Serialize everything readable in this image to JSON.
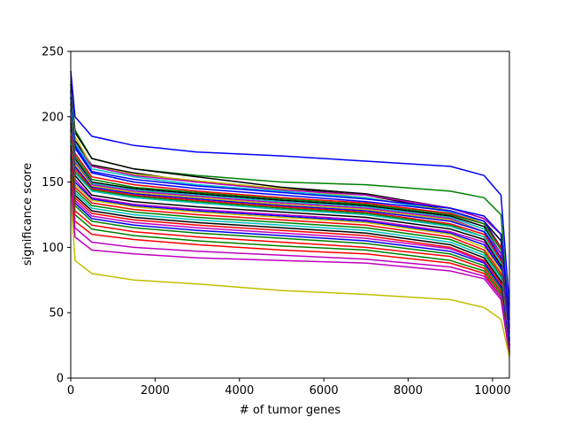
{
  "chart_data": {
    "type": "line",
    "title": "",
    "xlabel": "# of tumor genes",
    "ylabel": "significance score",
    "xlim": [
      0,
      10400
    ],
    "ylim": [
      0,
      250
    ],
    "xticks": [
      0,
      2000,
      4000,
      6000,
      8000,
      10000
    ],
    "yticks": [
      0,
      50,
      100,
      150,
      200,
      250
    ],
    "grid": false,
    "legend": "none",
    "n_points_note": "each curve sampled at x = [0, 100, 500, 1500, 3000, 5000, 7000, 9000, 9800, 10200, 10400]",
    "x": [
      0,
      100,
      500,
      1500,
      3000,
      5000,
      7000,
      9000,
      9800,
      10200,
      10400
    ],
    "series": [
      {
        "color": "#0000ff",
        "values": [
          235,
          200,
          185,
          178,
          173,
          170,
          166,
          162,
          155,
          140,
          55
        ]
      },
      {
        "color": "#008000",
        "values": [
          225,
          190,
          168,
          160,
          155,
          150,
          148,
          143,
          138,
          125,
          40
        ]
      },
      {
        "color": "#000000",
        "values": [
          225,
          188,
          168,
          160,
          154,
          146,
          141,
          130,
          122,
          110,
          30
        ]
      },
      {
        "color": "#000000",
        "values": [
          220,
          182,
          163,
          157,
          150,
          145,
          140,
          128,
          120,
          105,
          28
        ]
      },
      {
        "color": "#bfbf00",
        "values": [
          220,
          185,
          162,
          156,
          151,
          145,
          138,
          128,
          118,
          100,
          25
        ]
      },
      {
        "color": "#bf00bf",
        "values": [
          220,
          180,
          162,
          155,
          150,
          144,
          140,
          130,
          122,
          110,
          35
        ]
      },
      {
        "color": "#00bfbf",
        "values": [
          218,
          180,
          160,
          154,
          148,
          143,
          138,
          127,
          120,
          100,
          30
        ]
      },
      {
        "color": "#0000ff",
        "values": [
          215,
          178,
          158,
          152,
          147,
          142,
          137,
          130,
          124,
          110,
          45
        ]
      },
      {
        "color": "#0000ff",
        "values": [
          215,
          176,
          157,
          150,
          145,
          140,
          135,
          128,
          120,
          100,
          38
        ]
      },
      {
        "color": "#ff0000",
        "values": [
          210,
          172,
          154,
          148,
          143,
          138,
          134,
          126,
          118,
          100,
          30
        ]
      },
      {
        "color": "#008000",
        "values": [
          210,
          170,
          152,
          146,
          142,
          137,
          133,
          125,
          118,
          98,
          28
        ]
      },
      {
        "color": "#000000",
        "values": [
          205,
          168,
          150,
          145,
          141,
          136,
          132,
          124,
          116,
          95,
          25
        ]
      },
      {
        "color": "#00bfbf",
        "values": [
          205,
          166,
          149,
          144,
          140,
          135,
          131,
          123,
          114,
          95,
          24
        ]
      },
      {
        "color": "#bf00bf",
        "values": [
          200,
          165,
          148,
          143,
          139,
          134,
          130,
          122,
          112,
          95,
          24
        ]
      },
      {
        "color": "#bfbf00",
        "values": [
          200,
          164,
          147,
          142,
          138,
          133,
          129,
          121,
          112,
          92,
          22
        ]
      },
      {
        "color": "#0000ff",
        "values": [
          200,
          162,
          146,
          141,
          137,
          132,
          128,
          120,
          112,
          92,
          30
        ]
      },
      {
        "color": "#ff0000",
        "values": [
          198,
          160,
          145,
          140,
          136,
          131,
          127,
          118,
          110,
          90,
          25
        ]
      },
      {
        "color": "#008000",
        "values": [
          196,
          158,
          144,
          139,
          135,
          130,
          126,
          117,
          108,
          88,
          22
        ]
      },
      {
        "color": "#00bfbf",
        "values": [
          195,
          157,
          143,
          138,
          134,
          129,
          125,
          116,
          108,
          88,
          22
        ]
      },
      {
        "color": "#000000",
        "values": [
          195,
          155,
          140,
          135,
          131,
          127,
          123,
          114,
          106,
          86,
          22
        ]
      },
      {
        "color": "#bf00bf",
        "values": [
          192,
          152,
          138,
          133,
          129,
          125,
          121,
          112,
          104,
          84,
          22
        ]
      },
      {
        "color": "#0000ff",
        "values": [
          190,
          150,
          137,
          132,
          128,
          124,
          120,
          111,
          102,
          84,
          26
        ]
      },
      {
        "color": "#bfbf00",
        "values": [
          188,
          148,
          136,
          131,
          127,
          123,
          119,
          110,
          100,
          82,
          22
        ]
      },
      {
        "color": "#ff0000",
        "values": [
          185,
          146,
          134,
          129,
          125,
          121,
          117,
          108,
          98,
          80,
          20
        ]
      },
      {
        "color": "#008000",
        "values": [
          182,
          144,
          132,
          127,
          123,
          119,
          115,
          106,
          96,
          78,
          20
        ]
      },
      {
        "color": "#00bfbf",
        "values": [
          180,
          142,
          130,
          125,
          121,
          117,
          113,
          104,
          94,
          76,
          20
        ]
      },
      {
        "color": "#000000",
        "values": [
          178,
          140,
          128,
          123,
          119,
          115,
          111,
          102,
          92,
          74,
          20
        ]
      },
      {
        "color": "#ff0000",
        "values": [
          175,
          138,
          126,
          121,
          117,
          113,
          109,
          100,
          90,
          72,
          20
        ]
      },
      {
        "color": "#bf00bf",
        "values": [
          172,
          136,
          124,
          119,
          115,
          111,
          107,
          99,
          89,
          70,
          20
        ]
      },
      {
        "color": "#0000ff",
        "values": [
          170,
          134,
          122,
          117,
          113,
          109,
          105,
          97,
          88,
          70,
          24
        ]
      },
      {
        "color": "#008000",
        "values": [
          168,
          132,
          120,
          115,
          111,
          107,
          103,
          95,
          86,
          68,
          19
        ]
      },
      {
        "color": "#ff0000",
        "values": [
          165,
          128,
          117,
          112,
          108,
          104,
          100,
          93,
          84,
          66,
          18
        ]
      },
      {
        "color": "#008000",
        "values": [
          160,
          125,
          114,
          109,
          105,
          101,
          98,
          90,
          82,
          64,
          18
        ]
      },
      {
        "color": "#ff0000",
        "values": [
          155,
          120,
          110,
          106,
          102,
          98,
          95,
          88,
          80,
          62,
          18
        ]
      },
      {
        "color": "#bf00bf",
        "values": [
          150,
          115,
          104,
          100,
          97,
          94,
          91,
          85,
          78,
          62,
          18
        ]
      },
      {
        "color": "#bf00bf",
        "values": [
          145,
          108,
          98,
          95,
          92,
          90,
          88,
          82,
          76,
          60,
          18
        ]
      },
      {
        "color": "#bfbf00",
        "values": [
          140,
          90,
          80,
          75,
          72,
          67,
          64,
          60,
          54,
          45,
          16
        ]
      }
    ]
  }
}
